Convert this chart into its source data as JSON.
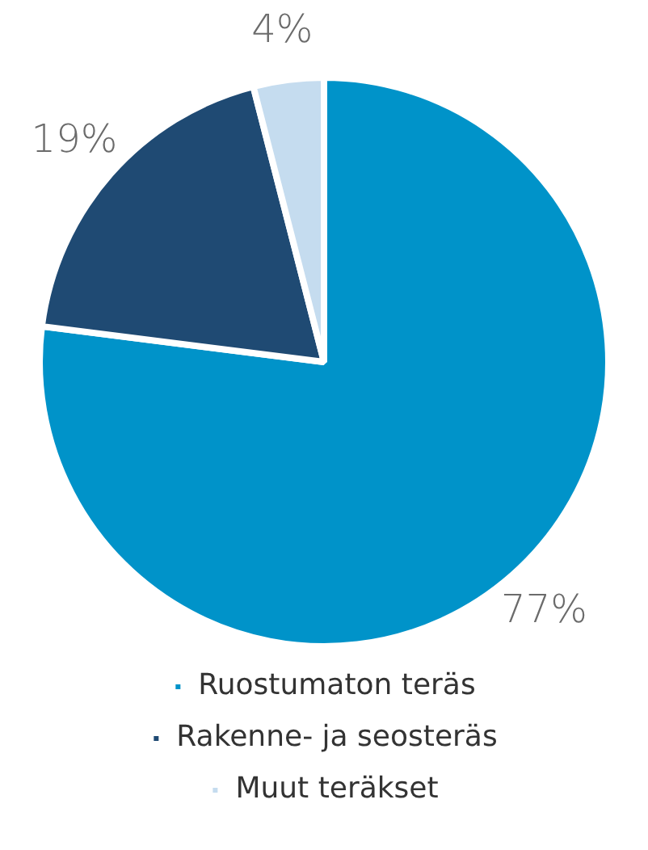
{
  "chart_data": {
    "type": "pie",
    "categories": [
      "Ruostumaton teräs",
      "Rakenne- ja seosteräs",
      "Muut teräkset"
    ],
    "values": [
      77,
      19,
      4
    ],
    "colors": [
      "#0093c9",
      "#1f4a73",
      "#c5dcef"
    ],
    "value_labels": [
      "77%",
      "19%",
      "4%"
    ],
    "legend": "bottom"
  }
}
